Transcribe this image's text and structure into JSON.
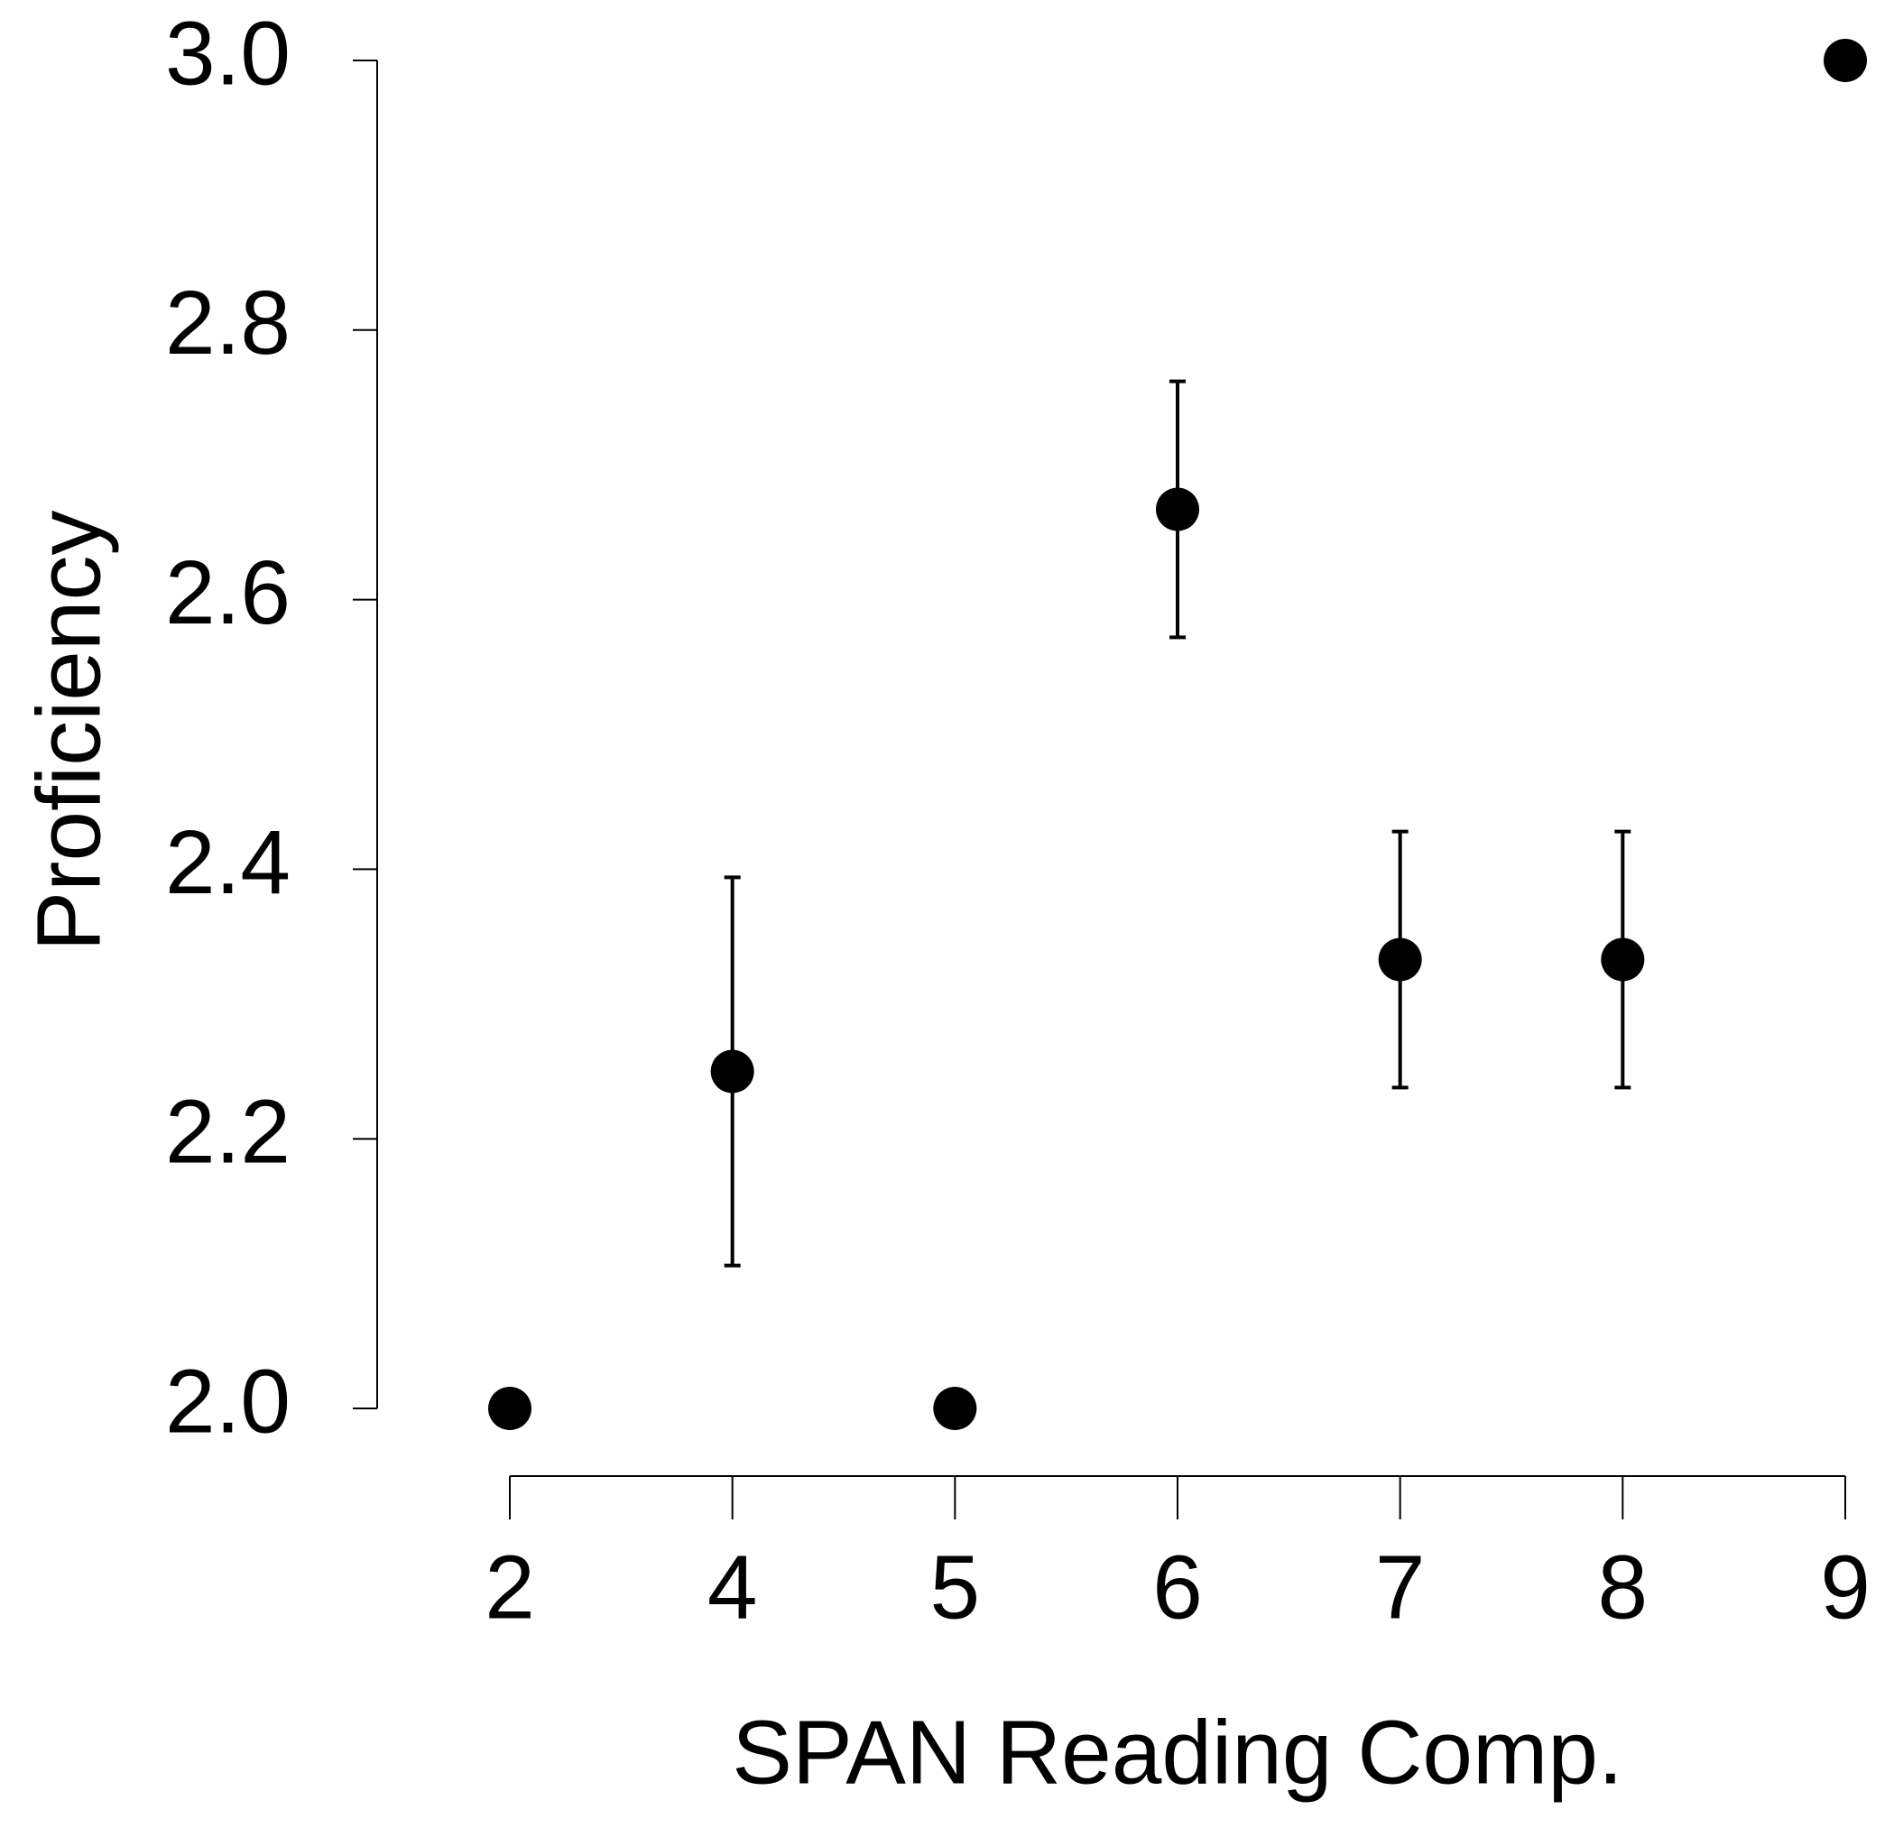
{
  "chart_data": {
    "type": "scatter",
    "x_label": "SPAN Reading Comp.",
    "y_label": "Proficiency",
    "categories": [
      "2",
      "4",
      "5",
      "6",
      "7",
      "8",
      "9"
    ],
    "values": [
      2.0,
      2.25,
      2.0,
      2.667,
      2.333,
      2.333,
      3.0
    ],
    "errors": [
      null,
      0.144,
      null,
      0.095,
      0.095,
      0.095,
      null
    ],
    "color": "#000000",
    "ylim": [
      2.0,
      3.0
    ],
    "yticks": [
      {
        "value": 2,
        "label": "2.0"
      },
      {
        "value": 2.2,
        "label": "2.2"
      },
      {
        "value": 2.4,
        "label": "2.4"
      },
      {
        "value": 2.6,
        "label": "2.6"
      },
      {
        "value": 2.8,
        "label": "2.8"
      },
      {
        "value": 3,
        "label": "3.0"
      }
    ],
    "grid": false
  }
}
